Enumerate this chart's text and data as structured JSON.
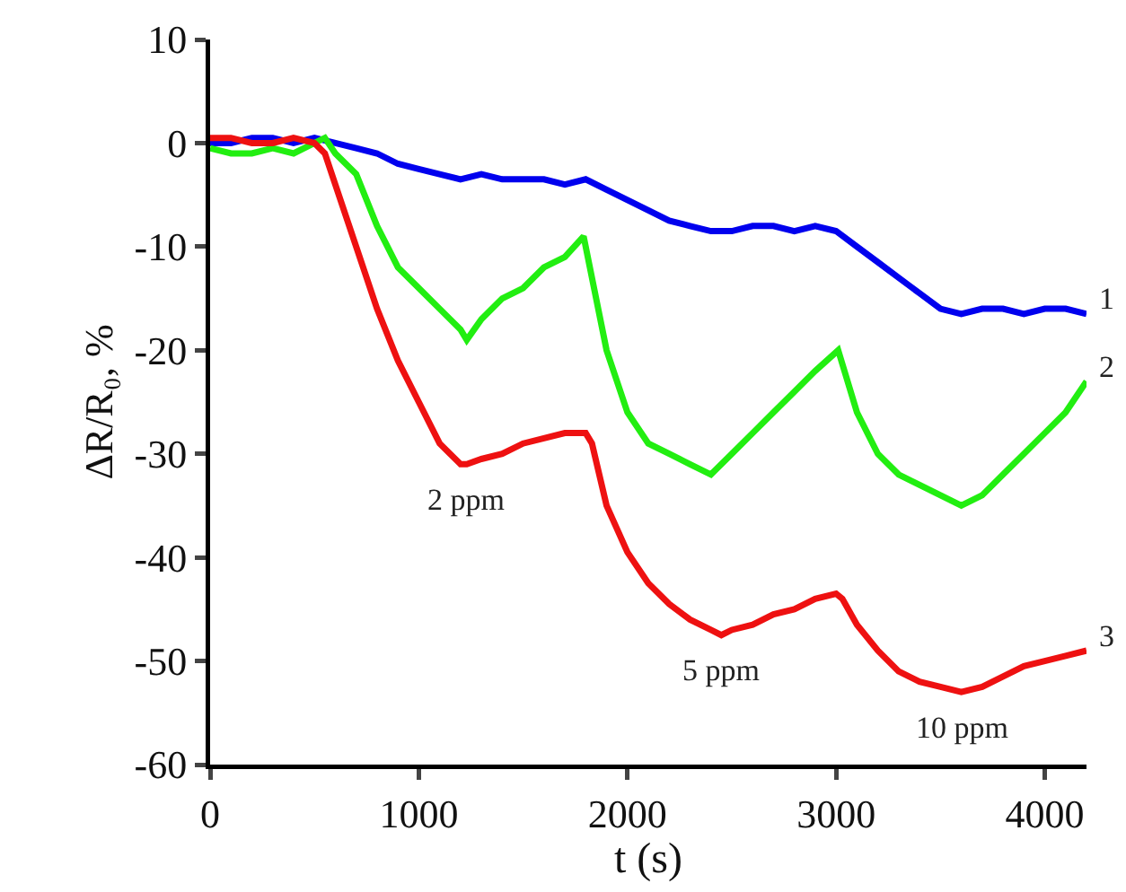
{
  "chart_data": {
    "type": "line",
    "xlabel": "t (s)",
    "ylabel": "ΔR/R₀, %",
    "xlim": [
      0,
      4200
    ],
    "ylim": [
      -60,
      10
    ],
    "xticks": [
      0,
      1000,
      2000,
      3000,
      4000
    ],
    "yticks": [
      10,
      0,
      -10,
      -20,
      -30,
      -40,
      -50,
      -60
    ],
    "grid": false,
    "legend": false,
    "marker": "none",
    "line_style": "solid",
    "series": [
      {
        "name": "1",
        "color": "#0000ee",
        "x": [
          0,
          100,
          200,
          300,
          400,
          500,
          600,
          700,
          800,
          900,
          1000,
          1100,
          1200,
          1300,
          1400,
          1500,
          1600,
          1700,
          1800,
          1900,
          2000,
          2100,
          2200,
          2300,
          2400,
          2500,
          2600,
          2700,
          2800,
          2900,
          3000,
          3100,
          3200,
          3300,
          3400,
          3500,
          3600,
          3700,
          3800,
          3900,
          4000,
          4100,
          4200
        ],
        "values": [
          0,
          0,
          0.5,
          0.5,
          0,
          0.5,
          0,
          -0.5,
          -1,
          -2,
          -2.5,
          -3,
          -3.5,
          -3,
          -3.5,
          -3.5,
          -3.5,
          -4,
          -3.5,
          -4.5,
          -5.5,
          -6.5,
          -7.5,
          -8,
          -8.5,
          -8.5,
          -8,
          -8,
          -8.5,
          -8,
          -8.5,
          -10,
          -11.5,
          -13,
          -14.5,
          -16,
          -16.5,
          -16,
          -16,
          -16.5,
          -16,
          -16,
          -16.5
        ]
      },
      {
        "name": "2",
        "color": "#22ee11",
        "x": [
          0,
          100,
          200,
          300,
          400,
          500,
          550,
          600,
          700,
          800,
          900,
          1000,
          1100,
          1200,
          1230,
          1300,
          1400,
          1500,
          1600,
          1700,
          1790,
          1850,
          1900,
          2000,
          2100,
          2200,
          2300,
          2400,
          2500,
          2600,
          2700,
          2800,
          2900,
          3010,
          3100,
          3200,
          3300,
          3400,
          3500,
          3600,
          3700,
          3800,
          3900,
          4000,
          4100,
          4200
        ],
        "values": [
          -0.5,
          -1,
          -1,
          -0.5,
          -1,
          0,
          0.5,
          -1,
          -3,
          -8,
          -12,
          -14,
          -16,
          -18,
          -19,
          -17,
          -15,
          -14,
          -12,
          -11,
          -9,
          -15,
          -20,
          -26,
          -29,
          -30,
          -31,
          -32,
          -30,
          -28,
          -26,
          -24,
          -22,
          -20,
          -26,
          -30,
          -32,
          -33,
          -34,
          -35,
          -34,
          -32,
          -30,
          -28,
          -26,
          -23
        ]
      },
      {
        "name": "3",
        "color": "#ee1111",
        "x": [
          0,
          100,
          200,
          300,
          400,
          500,
          550,
          600,
          700,
          800,
          900,
          1000,
          1100,
          1200,
          1230,
          1300,
          1400,
          1500,
          1600,
          1700,
          1800,
          1830,
          1900,
          2000,
          2100,
          2200,
          2300,
          2400,
          2450,
          2500,
          2600,
          2700,
          2800,
          2900,
          3000,
          3030,
          3100,
          3200,
          3300,
          3400,
          3500,
          3600,
          3700,
          3800,
          3900,
          4000,
          4100,
          4200
        ],
        "values": [
          0.5,
          0.5,
          0,
          0,
          0.5,
          0,
          -1,
          -4,
          -10,
          -16,
          -21,
          -25,
          -29,
          -31,
          -31,
          -30.5,
          -30,
          -29,
          -28.5,
          -28,
          -28,
          -29,
          -35,
          -39.5,
          -42.5,
          -44.5,
          -46,
          -47,
          -47.5,
          -47,
          -46.5,
          -45.5,
          -45,
          -44,
          -43.5,
          -44,
          -46.5,
          -49,
          -51,
          -52,
          -52.5,
          -53,
          -52.5,
          -51.5,
          -50.5,
          -50,
          -49.5,
          -49
        ]
      }
    ],
    "annotations": [
      {
        "text": "2 ppm",
        "x": 1230,
        "y": -31
      },
      {
        "text": "5 ppm",
        "x": 2450,
        "y": -47.5
      },
      {
        "text": "10 ppm",
        "x": 3600,
        "y": -53
      }
    ]
  }
}
